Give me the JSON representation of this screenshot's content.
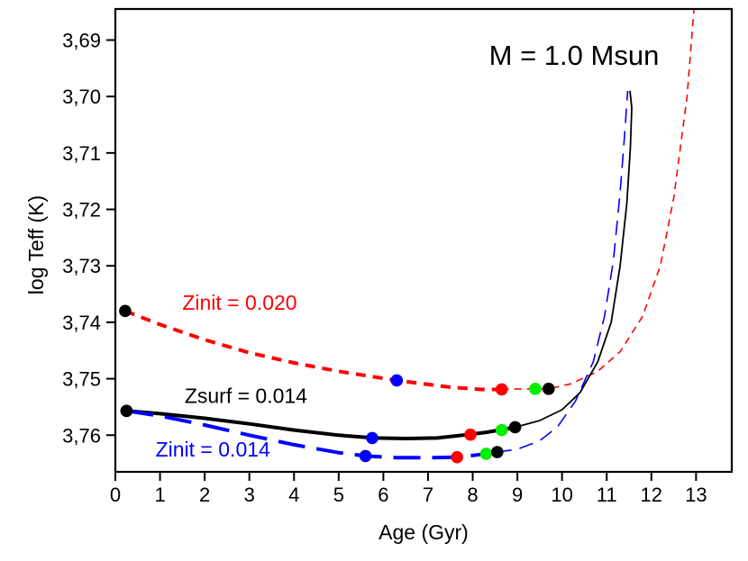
{
  "chart_data": {
    "type": "line",
    "title": "M = 1.0 Msun",
    "xlabel": "Age (Gyr)",
    "ylabel": "log Teff (K)",
    "xlim": [
      0,
      13.8
    ],
    "ylim": [
      3.6845,
      3.7665
    ],
    "y_inverted": true,
    "grid": false,
    "xticks": [
      0,
      1,
      2,
      3,
      4,
      5,
      6,
      7,
      8,
      9,
      10,
      11,
      12,
      13
    ],
    "xtick_labels": [
      "0",
      "1",
      "2",
      "3",
      "4",
      "5",
      "6",
      "7",
      "8",
      "9",
      "10",
      "11",
      "12",
      "13"
    ],
    "yticks": [
      3.69,
      3.7,
      3.71,
      3.72,
      3.73,
      3.74,
      3.75,
      3.76
    ],
    "ytick_labels": [
      "3,69",
      "3,70",
      "3,71",
      "3,72",
      "3,73",
      "3,74",
      "3,75",
      "3,76"
    ],
    "series": [
      {
        "name": "Zinit = 0.020",
        "color": "#ff0000",
        "label_anchor": [
          1.5,
          3.7378
        ],
        "segments": [
          {
            "style": "thick-dash",
            "x": [
              0.22,
              1.0,
              2.0,
              3.0,
              4.0,
              5.0,
              6.3,
              7.5,
              8.2,
              8.65
            ],
            "y": [
              3.738,
              3.7404,
              3.7431,
              3.7454,
              3.7472,
              3.7487,
              3.7503,
              3.7515,
              3.7519,
              3.7519
            ]
          },
          {
            "style": "thin-dash",
            "x": [
              8.65,
              9.0,
              9.4,
              9.7,
              10.2,
              10.8,
              11.3,
              11.8,
              12.2,
              12.5,
              12.8,
              13.0,
              13.15
            ],
            "y": [
              3.7519,
              3.7518,
              3.7518,
              3.7518,
              3.7509,
              3.7487,
              3.7452,
              3.739,
              3.73,
              3.718,
              3.7,
              3.68,
              3.672
            ]
          }
        ],
        "markers": [
          {
            "x": 0.22,
            "y": 3.738,
            "color": "#000000"
          },
          {
            "x": 6.3,
            "y": 3.7503,
            "color": "#0000ff"
          },
          {
            "x": 8.65,
            "y": 3.7519,
            "color": "#ff0000"
          },
          {
            "x": 9.4,
            "y": 3.7518,
            "color": "#00ee00"
          },
          {
            "x": 9.7,
            "y": 3.7518,
            "color": "#000000"
          }
        ]
      },
      {
        "name": "Zsurf = 0.014",
        "color": "#000000",
        "label_anchor": [
          1.55,
          3.7543
        ],
        "segments": [
          {
            "style": "thick-solid",
            "x": [
              0.25,
              1.0,
              2.0,
              3.0,
              4.0,
              5.0,
              5.8,
              6.5,
              7.2,
              7.9,
              8.3,
              8.6,
              8.95
            ],
            "y": [
              3.7557,
              3.7562,
              3.757,
              3.758,
              3.7591,
              3.76,
              3.7605,
              3.7606,
              3.7605,
              3.7599,
              3.7595,
              3.7591,
              3.7586
            ]
          },
          {
            "style": "thin-solid",
            "x": [
              8.95,
              9.5,
              10.0,
              10.4,
              10.8,
              11.1,
              11.3,
              11.45,
              11.53,
              11.56,
              11.52
            ],
            "y": [
              3.7586,
              3.7574,
              3.7555,
              3.7525,
              3.747,
              3.74,
              3.73,
              3.719,
              3.709,
              3.702,
              3.699
            ]
          }
        ],
        "markers": [
          {
            "x": 0.25,
            "y": 3.7557,
            "color": "#000000"
          },
          {
            "x": 5.75,
            "y": 3.7605,
            "color": "#0000ff"
          },
          {
            "x": 7.95,
            "y": 3.7599,
            "color": "#ff0000"
          },
          {
            "x": 8.65,
            "y": 3.7591,
            "color": "#00ee00"
          },
          {
            "x": 8.95,
            "y": 3.7586,
            "color": "#000000"
          }
        ]
      },
      {
        "name": "Zinit = 0.014",
        "color": "#0000ff",
        "label_anchor": [
          0.9,
          3.7638
        ],
        "segments": [
          {
            "style": "thick-dash",
            "x": [
              0.25,
              1.0,
              2.0,
              3.0,
              4.0,
              5.0,
              5.6,
              6.3,
              7.0,
              7.6,
              8.0,
              8.3,
              8.55
            ],
            "y": [
              3.7557,
              3.7566,
              3.7582,
              3.76,
              3.7617,
              3.7631,
              3.7637,
              3.764,
              3.764,
              3.7639,
              3.7636,
              3.7633,
              3.763
            ]
          },
          {
            "style": "thin-dash",
            "x": [
              8.55,
              9.0,
              9.5,
              9.9,
              10.3,
              10.7,
              10.95,
              11.15,
              11.3,
              11.4,
              11.47
            ],
            "y": [
              3.763,
              3.7625,
              3.761,
              3.7585,
              3.754,
              3.747,
              3.739,
              3.729,
              3.717,
              3.707,
              3.699
            ]
          }
        ],
        "markers": [
          {
            "x": 0.25,
            "y": 3.7557,
            "color": "#000000"
          },
          {
            "x": 5.6,
            "y": 3.7637,
            "color": "#0000ff"
          },
          {
            "x": 7.65,
            "y": 3.7639,
            "color": "#ff0000"
          },
          {
            "x": 8.3,
            "y": 3.7633,
            "color": "#00ee00"
          },
          {
            "x": 8.55,
            "y": 3.763,
            "color": "#000000"
          }
        ]
      }
    ]
  }
}
